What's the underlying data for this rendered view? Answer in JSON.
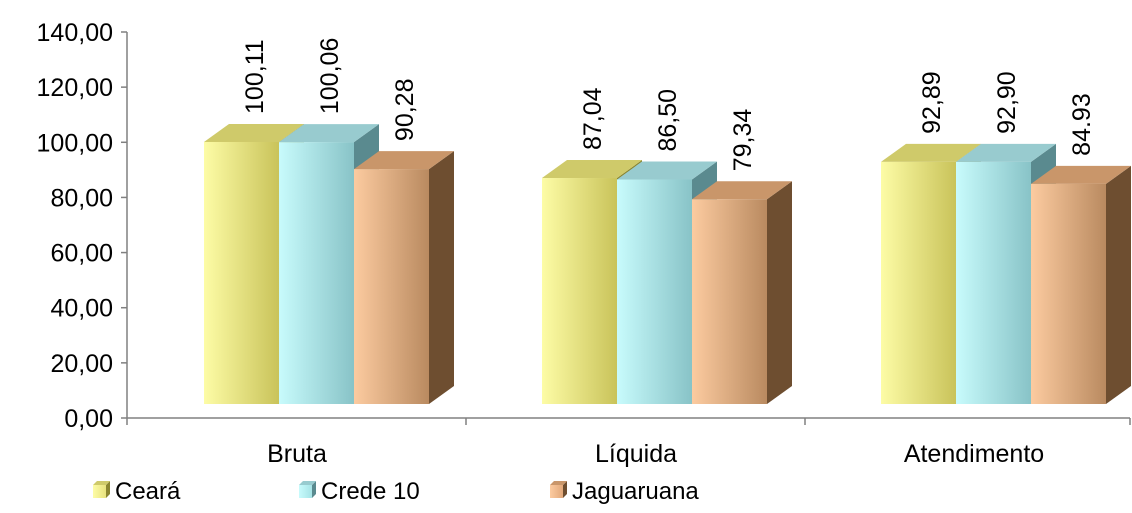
{
  "chart_data": {
    "type": "bar",
    "style": "3d-clustered",
    "categories": [
      "Bruta",
      "Líquida",
      "Atendimento"
    ],
    "series": [
      {
        "name": "Ceará",
        "values": [
          100.11,
          87.04,
          92.89
        ],
        "labels": [
          "100,11",
          "87,04",
          "92,89"
        ],
        "colors": {
          "front_light": "#fdfca6",
          "front_dark": "#c9c35a",
          "top": "#cfca6a",
          "side": "#8a8530",
          "legend": "#e8e27e"
        }
      },
      {
        "name": "Crede 10",
        "values": [
          100.06,
          86.5,
          92.9
        ],
        "labels": [
          "100,06",
          "86,50",
          "92,90"
        ],
        "colors": {
          "front_light": "#c8fbfc",
          "front_dark": "#88c3c7",
          "top": "#98cbcf",
          "side": "#5a8a8f",
          "legend": "#a6e3e6"
        }
      },
      {
        "name": "Jaguaruana",
        "values": [
          90.28,
          79.34,
          84.93
        ],
        "labels": [
          "90,28",
          "79,34",
          "84.93"
        ],
        "colors": {
          "front_light": "#fccba0",
          "front_dark": "#b98a60",
          "top": "#c9966a",
          "side": "#6e4e30",
          "legend": "#e2a87a"
        }
      }
    ],
    "y_axis": {
      "min": 0,
      "max": 140,
      "step": 20,
      "tick_labels": [
        "0,00",
        "20,00",
        "40,00",
        "60,00",
        "80,00",
        "100,00",
        "120,00",
        "140,00"
      ]
    },
    "title": "",
    "xlabel": "",
    "ylabel": "",
    "grid": false,
    "legend_position": "bottom-left"
  }
}
